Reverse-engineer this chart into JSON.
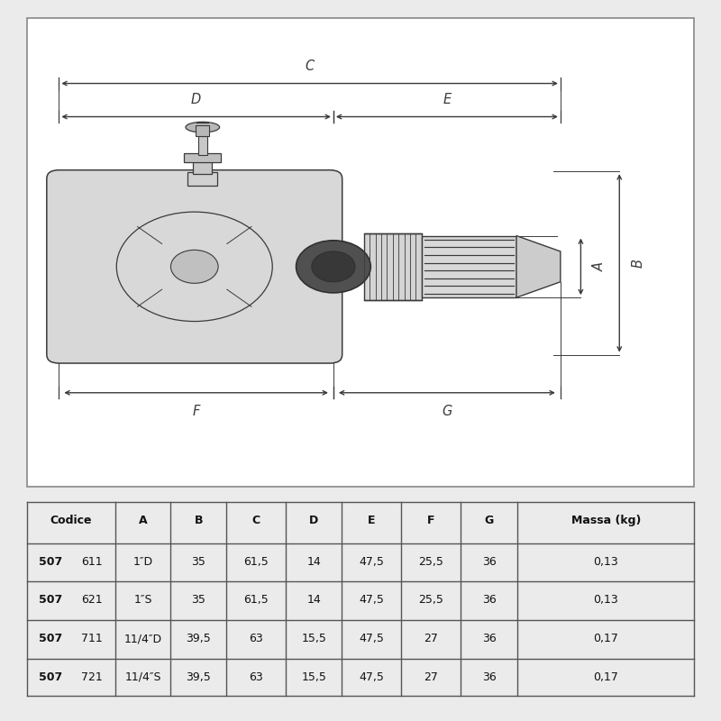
{
  "bg_color": "#ebebeb",
  "diagram_bg": "#ffffff",
  "line_color": "#3a3a3a",
  "table": {
    "headers": [
      "Codice",
      "A",
      "B",
      "C",
      "D",
      "E",
      "F",
      "G",
      "Massa (kg)"
    ],
    "rows": [
      [
        "507611",
        "1″D",
        "35",
        "61,5",
        "14",
        "47,5",
        "25,5",
        "36",
        "0,13"
      ],
      [
        "507621",
        "1″S",
        "35",
        "61,5",
        "14",
        "47,5",
        "25,5",
        "36",
        "0,13"
      ],
      [
        "507711",
        "11/4″D",
        "39,5",
        "63",
        "15,5",
        "47,5",
        "27",
        "36",
        "0,17"
      ],
      [
        "507721",
        "11/4″S",
        "39,5",
        "63",
        "15,5",
        "47,5",
        "27",
        "36",
        "0,17"
      ]
    ]
  }
}
